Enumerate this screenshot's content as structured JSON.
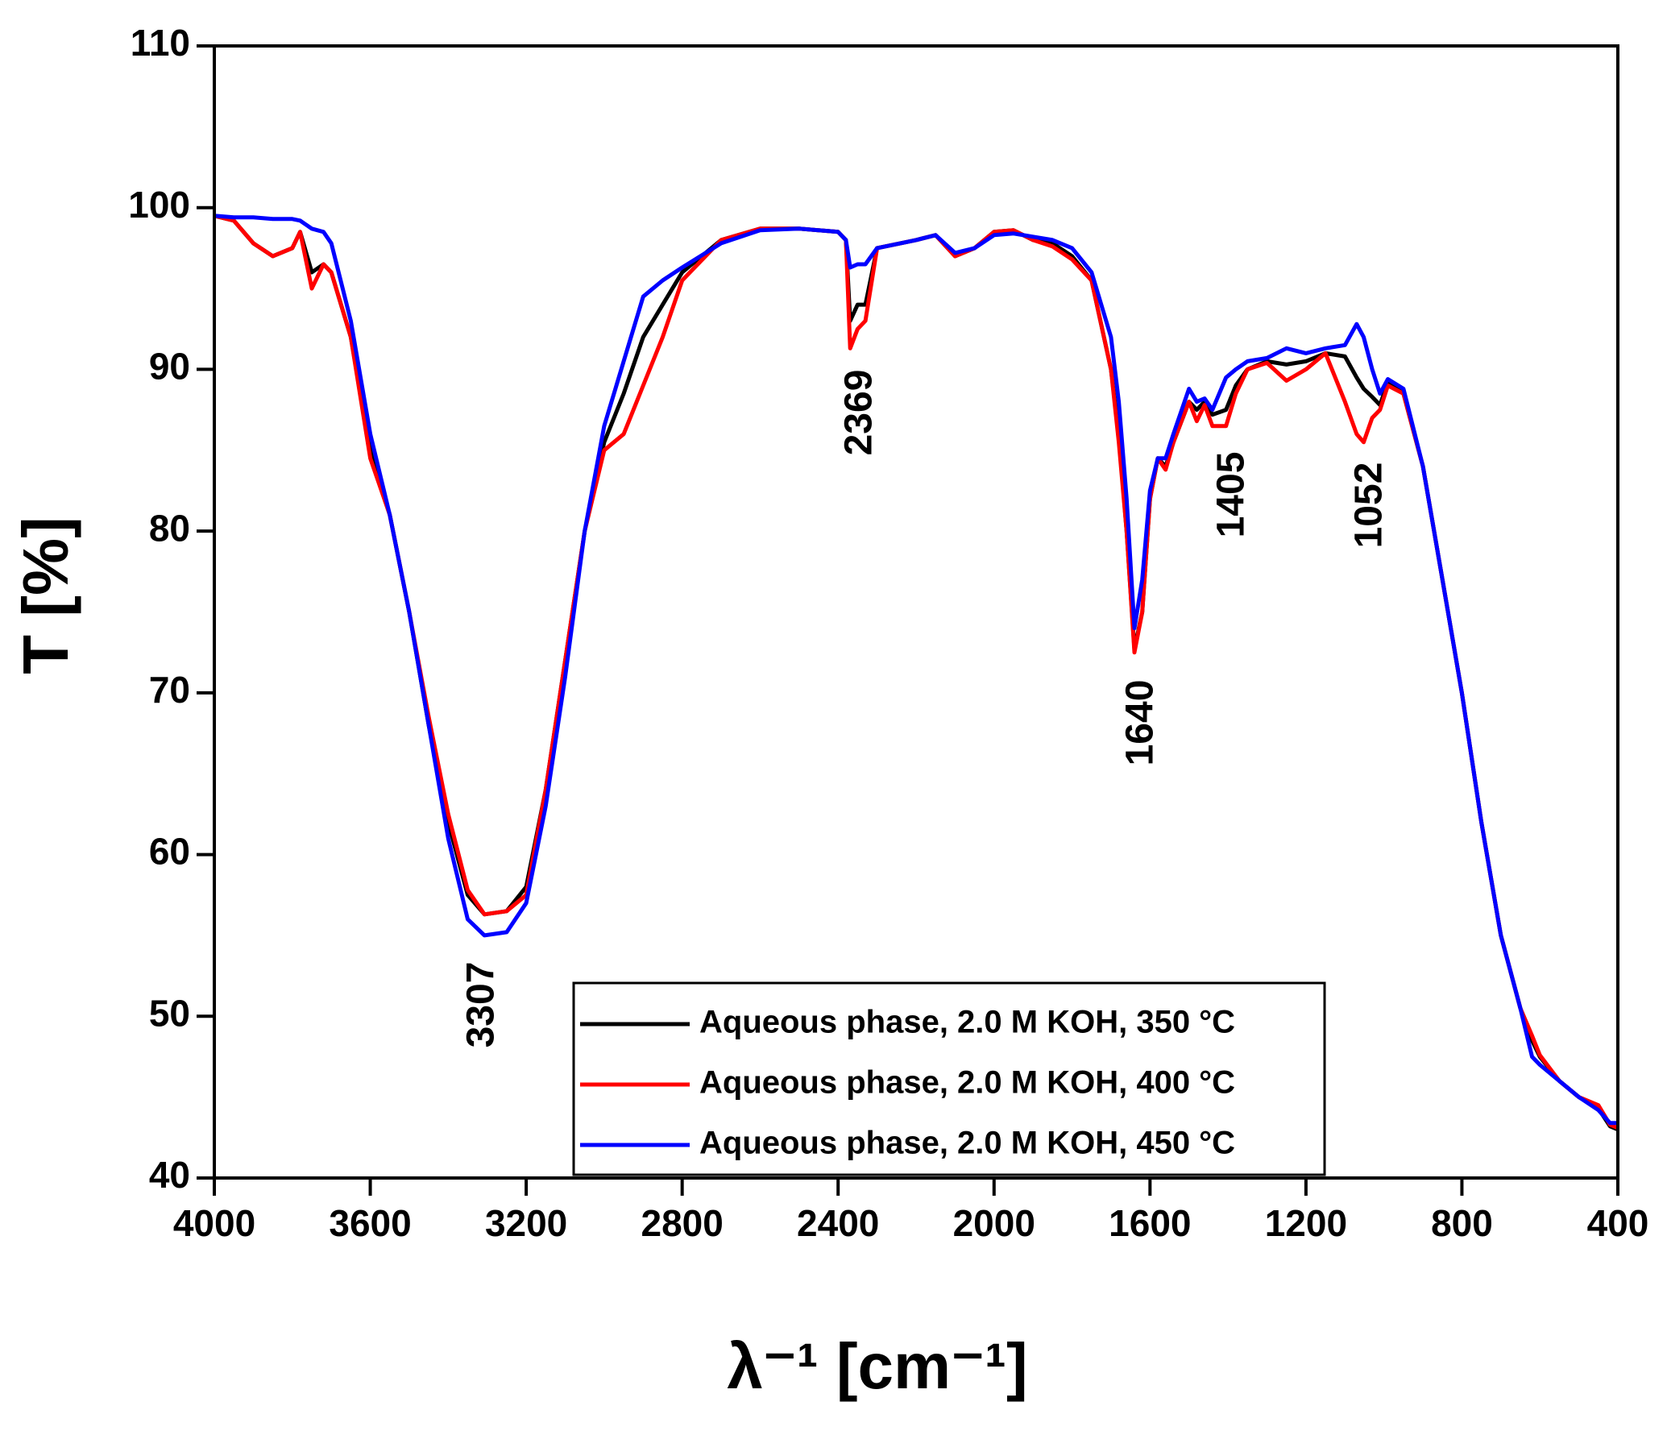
{
  "chart_data": {
    "type": "line",
    "xlabel": "λ⁻¹ [cm⁻¹]",
    "ylabel": "T [%]",
    "xlim": [
      4000,
      400
    ],
    "ylim": [
      40,
      110
    ],
    "xticks": [
      4000,
      3600,
      3200,
      2800,
      2400,
      2000,
      1600,
      1200,
      800,
      400
    ],
    "yticks": [
      40,
      50,
      60,
      70,
      80,
      90,
      100,
      110
    ],
    "annotations": [
      "3307",
      "2369",
      "1640",
      "1405",
      "1052"
    ],
    "x": [
      4000,
      3950,
      3900,
      3850,
      3800,
      3780,
      3750,
      3720,
      3700,
      3650,
      3600,
      3550,
      3500,
      3450,
      3400,
      3350,
      3307,
      3250,
      3200,
      3150,
      3100,
      3050,
      3000,
      2950,
      2900,
      2850,
      2800,
      2700,
      2600,
      2500,
      2400,
      2380,
      2369,
      2350,
      2330,
      2300,
      2200,
      2150,
      2100,
      2050,
      2000,
      1950,
      1900,
      1850,
      1800,
      1750,
      1700,
      1680,
      1660,
      1640,
      1620,
      1600,
      1580,
      1560,
      1540,
      1500,
      1480,
      1460,
      1440,
      1405,
      1380,
      1350,
      1300,
      1250,
      1200,
      1150,
      1100,
      1070,
      1052,
      1030,
      1010,
      990,
      950,
      900,
      850,
      800,
      750,
      700,
      650,
      620,
      600,
      550,
      500,
      450,
      420,
      400
    ],
    "series": [
      {
        "name": "Aqueous phase, 2.0 M KOH, 350 °C",
        "color": "#000000",
        "values": [
          99.5,
          99.2,
          97.8,
          97.0,
          97.5,
          98.5,
          96.0,
          96.5,
          96.0,
          92,
          85,
          81,
          75,
          68,
          62,
          57.5,
          56.3,
          56.5,
          58,
          64,
          72,
          80,
          85.5,
          88.5,
          92,
          94,
          96,
          98,
          98.7,
          98.7,
          98.5,
          98.0,
          93.0,
          94.0,
          94.0,
          97.5,
          98,
          98.3,
          97.0,
          97.5,
          98.5,
          98.6,
          98,
          97.8,
          97,
          95.5,
          90,
          86,
          80,
          72.7,
          75,
          82,
          84.5,
          84,
          85.5,
          88,
          87.5,
          88,
          87.2,
          87.5,
          89,
          90,
          90.5,
          90.3,
          90.5,
          91,
          90.8,
          89.5,
          88.8,
          88.3,
          87.8,
          89.2,
          88.5,
          84,
          77,
          70,
          62,
          55,
          50.5,
          48.5,
          47.5,
          46,
          45,
          44.3,
          43.2,
          43
        ]
      },
      {
        "name": "Aqueous phase, 2.0 M KOH, 400 °C",
        "color": "#ff0000",
        "values": [
          99.5,
          99.2,
          97.8,
          97.0,
          97.5,
          98.5,
          95.0,
          96.5,
          96.0,
          92,
          84.5,
          81,
          75,
          68.5,
          62.5,
          57.8,
          56.3,
          56.5,
          57.5,
          64,
          72,
          80,
          85,
          86,
          89,
          92,
          95.5,
          98,
          98.7,
          98.7,
          98.5,
          98.0,
          91.3,
          92.5,
          93,
          97.5,
          98,
          98.3,
          97.0,
          97.5,
          98.5,
          98.6,
          98,
          97.6,
          96.8,
          95.5,
          90,
          85.5,
          80,
          72.5,
          75,
          82,
          84.5,
          83.8,
          85.5,
          88,
          86.8,
          87.8,
          86.5,
          86.5,
          88.5,
          90,
          90.4,
          89.3,
          90,
          91,
          88,
          86,
          85.5,
          87,
          87.5,
          89,
          88.5,
          84,
          77,
          70,
          62,
          55,
          50.5,
          48.8,
          47.6,
          46,
          45,
          44.5,
          43.3,
          43.1
        ]
      },
      {
        "name": "Aqueous phase, 2.0 M KOH, 450 °C",
        "color": "#0000ff",
        "values": [
          99.5,
          99.4,
          99.4,
          99.3,
          99.3,
          99.2,
          98.7,
          98.5,
          97.8,
          93,
          86,
          81,
          75,
          68,
          61,
          56,
          55,
          55.2,
          57,
          63,
          71,
          80,
          86.5,
          90.5,
          94.5,
          95.5,
          96.3,
          97.8,
          98.6,
          98.7,
          98.5,
          98.0,
          96.3,
          96.5,
          96.5,
          97.5,
          98,
          98.3,
          97.2,
          97.5,
          98.3,
          98.4,
          98.2,
          98,
          97.5,
          96,
          92,
          88,
          82,
          74,
          77,
          82.5,
          84.5,
          84.5,
          86,
          88.8,
          88,
          88.2,
          87.5,
          89.5,
          90,
          90.5,
          90.7,
          91.3,
          91,
          91.3,
          91.5,
          92.8,
          92,
          90,
          88.5,
          89.4,
          88.8,
          84,
          77,
          70,
          62,
          55,
          50.5,
          47.5,
          47,
          46,
          45,
          44.2,
          43.4,
          43.4
        ]
      }
    ]
  }
}
